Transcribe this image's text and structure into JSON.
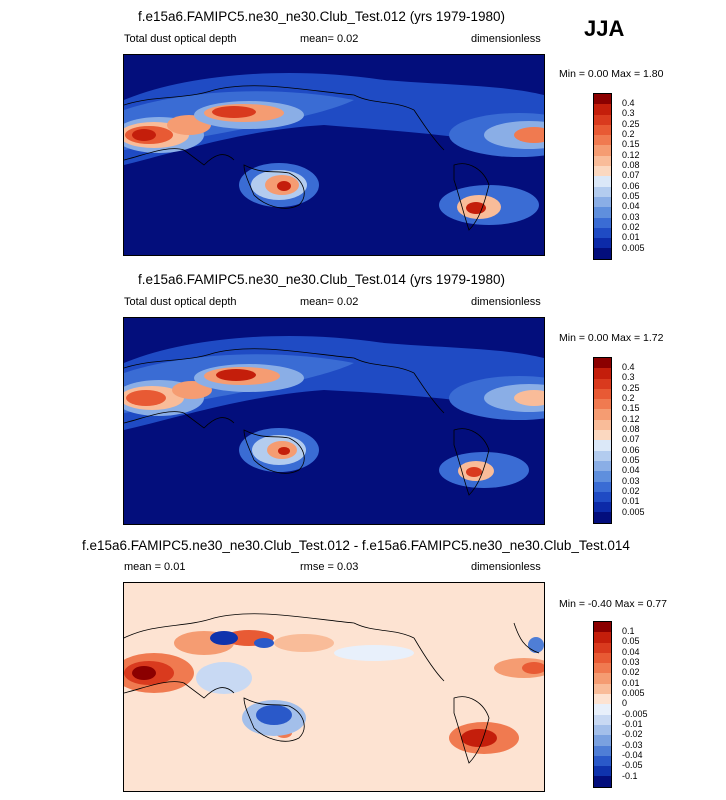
{
  "season": "JJA",
  "panels": [
    {
      "title": "f.e15a6.FAMIPC5.ne30_ne30.Club_Test.012 (yrs 1979-1980)",
      "left_label": "Total dust optical depth",
      "mid_label": "mean=  0.02",
      "right_label": "dimensionless",
      "minmax": "Min =  0.00 Max =  1.80",
      "colorbar_labels": [
        "0.4",
        "0.3",
        "0.25",
        "0.2",
        "0.15",
        "0.12",
        "0.08",
        "0.07",
        "0.06",
        "0.05",
        "0.04",
        "0.03",
        "0.02",
        "0.01",
        "0.005"
      ],
      "colors": [
        "#8b0000",
        "#c41e0b",
        "#d93a1e",
        "#e85a34",
        "#f07a50",
        "#f59c72",
        "#f9bc99",
        "#fbd8c0",
        "#dbe8f8",
        "#b3ccef",
        "#8aaee6",
        "#5f8fdd",
        "#3a6cd4",
        "#1f4bc4",
        "#0c2aa8",
        "#030e7c"
      ]
    },
    {
      "title": "f.e15a6.FAMIPC5.ne30_ne30.Club_Test.014 (yrs 1979-1980)",
      "left_label": "Total dust optical depth",
      "mid_label": "mean=  0.02",
      "right_label": "dimensionless",
      "minmax": "Min =  0.00 Max =  1.72",
      "colorbar_labels": [
        "0.4",
        "0.3",
        "0.25",
        "0.2",
        "0.15",
        "0.12",
        "0.08",
        "0.07",
        "0.06",
        "0.05",
        "0.04",
        "0.03",
        "0.02",
        "0.01",
        "0.005"
      ],
      "colors": [
        "#8b0000",
        "#c41e0b",
        "#d93a1e",
        "#e85a34",
        "#f07a50",
        "#f59c72",
        "#f9bc99",
        "#fbd8c0",
        "#dbe8f8",
        "#b3ccef",
        "#8aaee6",
        "#5f8fdd",
        "#3a6cd4",
        "#1f4bc4",
        "#0c2aa8",
        "#030e7c"
      ]
    },
    {
      "title": "f.e15a6.FAMIPC5.ne30_ne30.Club_Test.012 - f.e15a6.FAMIPC5.ne30_ne30.Club_Test.014",
      "left_label": "mean =  0.01",
      "mid_label": "rmse =  0.03",
      "right_label": "dimensionless",
      "minmax": "Min = -0.40 Max =  0.77",
      "colorbar_labels": [
        "0.1",
        "0.05",
        "0.04",
        "0.03",
        "0.02",
        "0.01",
        "0.005",
        "0",
        "-0.005",
        "-0.01",
        "-0.02",
        "-0.03",
        "-0.04",
        "-0.05",
        "-0.1"
      ],
      "colors": [
        "#8b0000",
        "#c41e0b",
        "#d93a1e",
        "#e85a34",
        "#f07a50",
        "#f59c72",
        "#f9bc99",
        "#fde3d2",
        "#e8f0fb",
        "#c8d9f3",
        "#a3bfea",
        "#7aa1e0",
        "#4f7ed6",
        "#2a59c9",
        "#0f33ad",
        "#030e7c"
      ]
    }
  ]
}
